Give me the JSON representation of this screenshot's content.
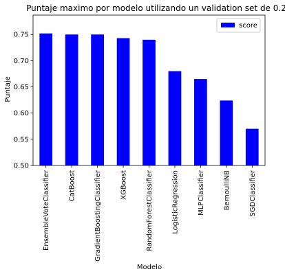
{
  "chart_data": {
    "type": "bar",
    "title": "Puntaje maximo por modelo utilizando un validation set de 0.2",
    "xlabel": "Modelo",
    "ylabel": "Puntaje",
    "categories": [
      "EnsembleVoteClassifier",
      "CatBoost",
      "GradientBoostingClassifier",
      "XGBoost",
      "RandomForestClassifier",
      "LogisticRegression",
      "MLPClassifier",
      "BernoulliNB",
      "SGDClassifier"
    ],
    "series": [
      {
        "name": "score",
        "color": "#0000ff",
        "values": [
          0.752,
          0.75,
          0.75,
          0.743,
          0.74,
          0.68,
          0.665,
          0.624,
          0.57
        ]
      }
    ],
    "ylim": [
      0.5,
      0.787
    ],
    "yticks": [
      "0.50",
      "0.55",
      "0.60",
      "0.65",
      "0.70",
      "0.75"
    ],
    "grid": false,
    "legend": "top-right"
  }
}
